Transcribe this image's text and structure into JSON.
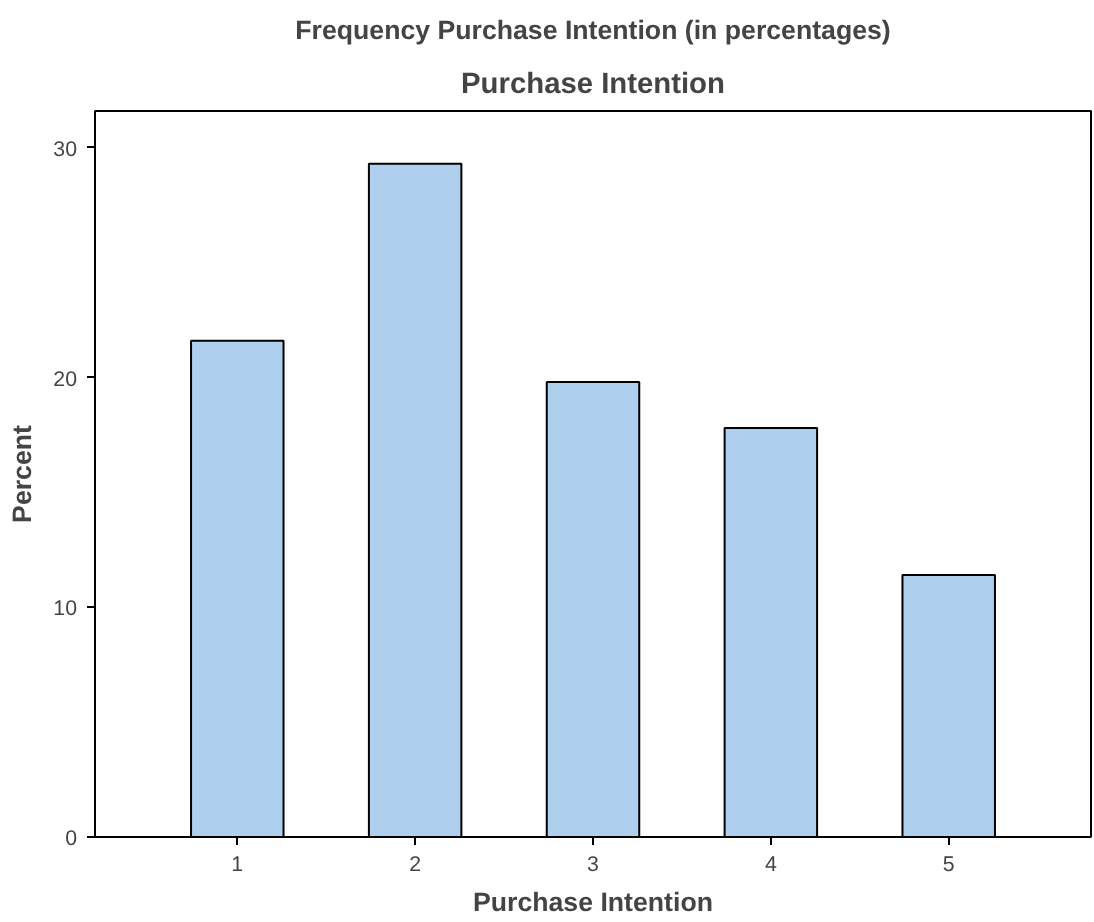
{
  "chart_data": {
    "type": "bar",
    "title": "Frequency Purchase Intention (in percentages)",
    "subtitle": "Purchase Intention",
    "xlabel": "Purchase Intention",
    "ylabel": "Percent",
    "categories": [
      "1",
      "2",
      "3",
      "4",
      "5"
    ],
    "values": [
      21.6,
      29.3,
      19.8,
      17.8,
      11.4
    ],
    "color": "#aed0ee",
    "ylim": [
      0,
      31.6
    ],
    "yticks": [
      0,
      10,
      20,
      30
    ],
    "grid": false
  }
}
